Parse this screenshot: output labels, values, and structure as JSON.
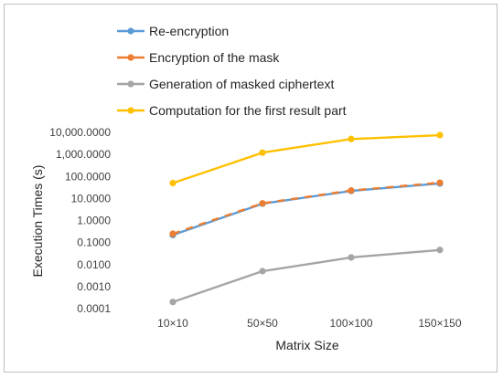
{
  "chart_data": {
    "type": "line",
    "title": "",
    "xlabel": "Matrix Size",
    "ylabel": "Execution Times (s)",
    "yscale": "log",
    "ylim": [
      0.0001,
      10000
    ],
    "yticks": [
      "0.0001",
      "0.0010",
      "0.0100",
      "0.1000",
      "1.0000",
      "10.0000",
      "100.0000",
      "1,000.0000",
      "10,000.0000"
    ],
    "categories": [
      "10×10",
      "50×50",
      "100×100",
      "150×150"
    ],
    "grid": false,
    "legend_position": "top",
    "series": [
      {
        "name": "Re-encryption",
        "color": "#5b9bd5",
        "values": [
          0.22,
          5.8,
          22,
          48
        ]
      },
      {
        "name": "Encryption of the mask",
        "color": "#ed7d31",
        "values": [
          0.25,
          6.0,
          23,
          52
        ],
        "dashed": true
      },
      {
        "name": "Generation of masked ciphertext",
        "color": "#a5a5a5",
        "values": [
          0.0002,
          0.005,
          0.021,
          0.046
        ]
      },
      {
        "name": "Computation for the first result part",
        "color": "#ffc000",
        "values": [
          50,
          1200,
          5000,
          7500
        ]
      }
    ]
  }
}
